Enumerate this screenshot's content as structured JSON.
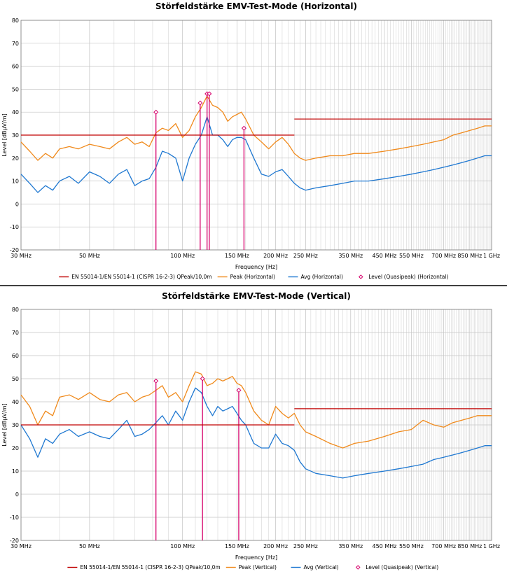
{
  "chart_data": [
    {
      "type": "line",
      "title": "Störfeldstärke EMV-Test-Mode  (Horizontal)",
      "xlabel": "Frequency [Hz]",
      "ylabel": "Level [dBµV/m]",
      "x_scale": "log",
      "xlim_mhz": [
        30,
        1000
      ],
      "ylim": [
        -20,
        80
      ],
      "y_ticks": [
        -20,
        -10,
        0,
        10,
        20,
        30,
        40,
        50,
        60,
        70,
        80
      ],
      "x_tick_labels": [
        "30 MHz",
        "50 MHz",
        "100 MHz",
        "150 MHz",
        "200 MHz",
        "250 MHz",
        "350 MHz",
        "450 MHz",
        "550 MHz",
        "700 MHz",
        "850 MHz",
        "1 GHz"
      ],
      "x_tick_values_mhz": [
        30,
        50,
        100,
        150,
        200,
        250,
        350,
        450,
        550,
        700,
        850,
        1000
      ],
      "legend_position": "bottom",
      "grid": true,
      "limit_line": {
        "name": "EN 55014-1/EN 55014-1 (CISPR 16-2-3) QPeak/10,0m",
        "color": "#c00000",
        "segments": [
          {
            "x": [
              30,
              230
            ],
            "y": 30
          },
          {
            "x": [
              230,
              1000
            ],
            "y": 37
          }
        ]
      },
      "series": [
        {
          "name": "Peak (Horizontal)",
          "color": "#f08a1c",
          "x": [
            30,
            32,
            34,
            36,
            38,
            40,
            43,
            46,
            50,
            54,
            58,
            62,
            66,
            70,
            74,
            78,
            82,
            86,
            90,
            95,
            100,
            105,
            110,
            115,
            120,
            125,
            130,
            135,
            140,
            145,
            150,
            155,
            160,
            170,
            180,
            190,
            200,
            210,
            220,
            230,
            240,
            250,
            270,
            300,
            330,
            360,
            400,
            450,
            500,
            550,
            600,
            650,
            700,
            750,
            800,
            850,
            900,
            950,
            1000
          ],
          "y": [
            27,
            23,
            19,
            22,
            20,
            24,
            25,
            24,
            26,
            25,
            24,
            27,
            29,
            26,
            27,
            25,
            31,
            33,
            32,
            35,
            29,
            32,
            38,
            42,
            47,
            43,
            42,
            40,
            36,
            38,
            39,
            40,
            37,
            30,
            27,
            24,
            27,
            29,
            26,
            22,
            20,
            19,
            20,
            21,
            21,
            22,
            22,
            23,
            24,
            25,
            26,
            27,
            28,
            30,
            31,
            32,
            33,
            34,
            34
          ]
        },
        {
          "name": "Avg (Horizontal)",
          "color": "#1f78d1",
          "x": [
            30,
            32,
            34,
            36,
            38,
            40,
            43,
            46,
            50,
            54,
            58,
            62,
            66,
            70,
            74,
            78,
            82,
            86,
            90,
            95,
            100,
            105,
            110,
            115,
            120,
            125,
            130,
            135,
            140,
            145,
            150,
            155,
            160,
            170,
            180,
            190,
            200,
            210,
            220,
            230,
            240,
            250,
            270,
            300,
            330,
            360,
            400,
            450,
            500,
            550,
            600,
            650,
            700,
            750,
            800,
            850,
            900,
            950,
            1000
          ],
          "y": [
            13,
            9,
            5,
            8,
            6,
            10,
            12,
            9,
            14,
            12,
            9,
            13,
            15,
            8,
            10,
            11,
            16,
            23,
            22,
            20,
            10,
            20,
            26,
            30,
            38,
            30,
            30,
            28,
            25,
            28,
            29,
            29,
            28,
            20,
            13,
            12,
            14,
            15,
            12,
            9,
            7,
            6,
            7,
            8,
            9,
            10,
            10,
            11,
            12,
            13,
            14,
            15,
            16,
            17,
            18,
            19,
            20,
            21,
            21
          ]
        },
        {
          "name": "Level (Quasipeak) (Horizontal)",
          "color": "#d6006b",
          "type": "stem",
          "x": [
            82,
            114,
            120,
            122,
            158
          ],
          "y": [
            40,
            44,
            48,
            48,
            33
          ]
        }
      ]
    },
    {
      "type": "line",
      "title": "Störfeldstärke EMV-Test-Mode  (Vertical)",
      "xlabel": "Frequency [Hz]",
      "ylabel": "Level [dBµV/m]",
      "x_scale": "log",
      "xlim_mhz": [
        30,
        1000
      ],
      "ylim": [
        -20,
        80
      ],
      "y_ticks": [
        -20,
        -10,
        0,
        10,
        20,
        30,
        40,
        50,
        60,
        70,
        80
      ],
      "x_tick_labels": [
        "30 MHz",
        "50 MHz",
        "100 MHz",
        "150 MHz",
        "200 MHz",
        "250 MHz",
        "350 MHz",
        "450 MHz",
        "550 MHz",
        "700 MHz",
        "850 MHz",
        "1 GHz"
      ],
      "x_tick_values_mhz": [
        30,
        50,
        100,
        150,
        200,
        250,
        350,
        450,
        550,
        700,
        850,
        1000
      ],
      "legend_position": "bottom",
      "grid": true,
      "limit_line": {
        "name": "EN 55014-1/EN 55014-1 (CISPR 16-2-3) QPeak/10,0m",
        "color": "#c00000",
        "segments": [
          {
            "x": [
              30,
              230
            ],
            "y": 30
          },
          {
            "x": [
              230,
              1000
            ],
            "y": 37
          }
        ]
      },
      "series": [
        {
          "name": "Peak (Vertical)",
          "color": "#f08a1c",
          "x": [
            30,
            32,
            34,
            36,
            38,
            40,
            43,
            46,
            50,
            54,
            58,
            62,
            66,
            70,
            74,
            78,
            82,
            86,
            90,
            95,
            100,
            105,
            110,
            115,
            120,
            125,
            130,
            135,
            140,
            145,
            150,
            155,
            160,
            170,
            180,
            190,
            200,
            210,
            220,
            230,
            240,
            250,
            270,
            300,
            330,
            360,
            400,
            450,
            500,
            550,
            600,
            650,
            700,
            750,
            800,
            850,
            900,
            950,
            1000
          ],
          "y": [
            43,
            38,
            30,
            36,
            34,
            42,
            43,
            41,
            44,
            41,
            40,
            43,
            44,
            40,
            42,
            43,
            45,
            47,
            42,
            44,
            40,
            47,
            53,
            52,
            47,
            48,
            50,
            49,
            50,
            51,
            48,
            47,
            44,
            36,
            32,
            30,
            38,
            35,
            33,
            35,
            30,
            27,
            25,
            22,
            20,
            22,
            23,
            25,
            27,
            28,
            32,
            30,
            29,
            31,
            32,
            33,
            34,
            34,
            34
          ]
        },
        {
          "name": "Avg (Vertical)",
          "color": "#1f78d1",
          "x": [
            30,
            32,
            34,
            36,
            38,
            40,
            43,
            46,
            50,
            54,
            58,
            62,
            66,
            70,
            74,
            78,
            82,
            86,
            90,
            95,
            100,
            105,
            110,
            115,
            120,
            125,
            130,
            135,
            140,
            145,
            150,
            155,
            160,
            170,
            180,
            190,
            200,
            210,
            220,
            230,
            240,
            250,
            270,
            300,
            330,
            360,
            400,
            450,
            500,
            550,
            600,
            650,
            700,
            750,
            800,
            850,
            900,
            950,
            1000
          ],
          "y": [
            30,
            24,
            16,
            24,
            22,
            26,
            28,
            25,
            27,
            25,
            24,
            28,
            32,
            25,
            26,
            28,
            31,
            34,
            30,
            36,
            32,
            40,
            46,
            44,
            38,
            34,
            38,
            36,
            37,
            38,
            35,
            32,
            30,
            22,
            20,
            20,
            26,
            22,
            21,
            19,
            14,
            11,
            9,
            8,
            7,
            8,
            9,
            10,
            11,
            12,
            13,
            15,
            16,
            17,
            18,
            19,
            20,
            21,
            21
          ]
        },
        {
          "name": "Level (Quasipeak) (Vertical)",
          "color": "#d6006b",
          "type": "stem",
          "x": [
            82,
            116,
            152
          ],
          "y": [
            49,
            50,
            45
          ]
        }
      ]
    }
  ]
}
